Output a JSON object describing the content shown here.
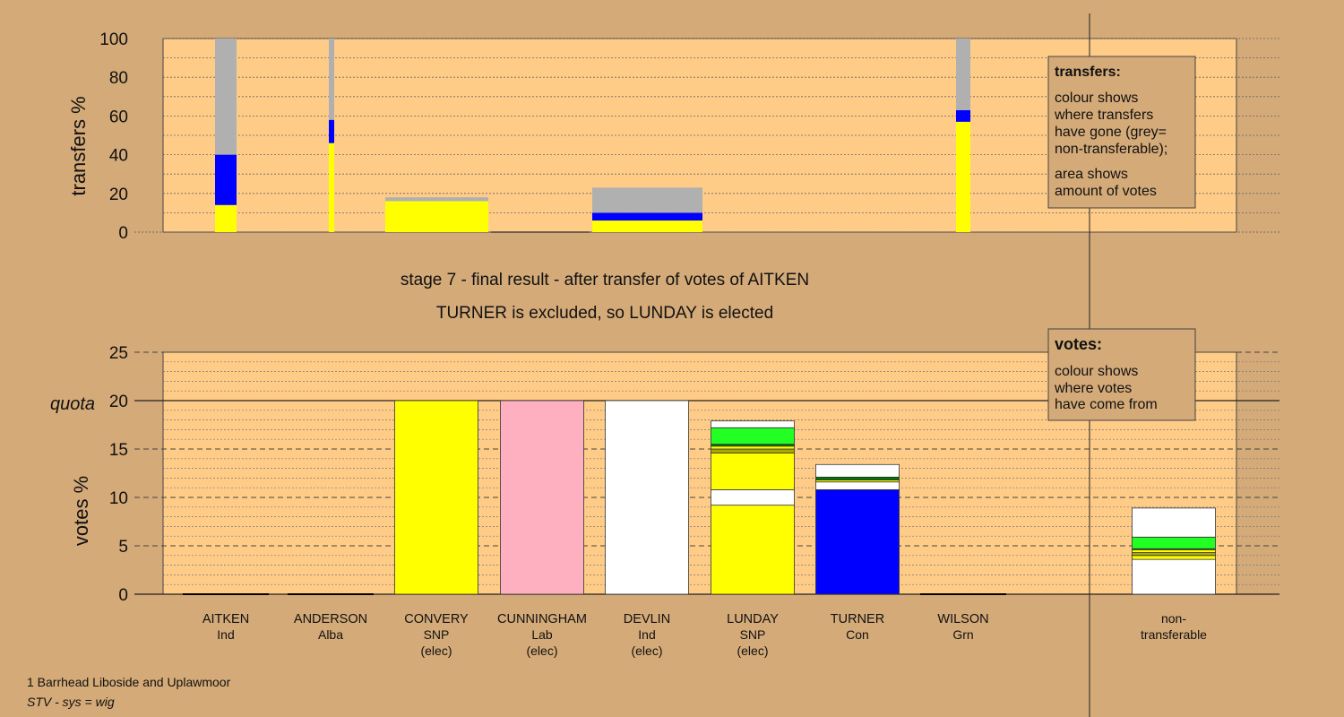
{
  "chart_data": [
    {
      "type": "bar",
      "name": "transfers",
      "ylabel": "transfers %",
      "ylim": [
        0,
        100
      ],
      "yticks": [
        0,
        20,
        40,
        60,
        80,
        100
      ],
      "colors": {
        "yellow": "#ffff00",
        "blue": "#0000ff",
        "grey": "#b0b0b0",
        "plot_bg": "#ffcc88"
      },
      "bars": [
        {
          "candidate": "AITKEN",
          "segments": [
            {
              "color": "yellow",
              "value": 14
            },
            {
              "color": "blue",
              "value": 26
            },
            {
              "color": "grey",
              "value": 60
            }
          ]
        },
        {
          "candidate": "ANDERSON",
          "segments": [
            {
              "color": "yellow",
              "value": 46
            },
            {
              "color": "blue",
              "value": 12
            },
            {
              "color": "grey",
              "value": 42
            }
          ]
        },
        {
          "candidate": "CONVERY",
          "segments": [
            {
              "color": "yellow",
              "value": 16
            },
            {
              "color": "grey",
              "value": 2
            }
          ]
        },
        {
          "candidate": "CUNNINGHAM",
          "segments": []
        },
        {
          "candidate": "DEVLIN",
          "segments": [
            {
              "color": "yellow",
              "value": 6
            },
            {
              "color": "blue",
              "value": 4
            },
            {
              "color": "grey",
              "value": 13
            }
          ]
        },
        {
          "candidate": "WILSON",
          "segments": [
            {
              "color": "yellow",
              "value": 57
            },
            {
              "color": "blue",
              "value": 6
            },
            {
              "color": "grey",
              "value": 37
            }
          ]
        }
      ],
      "legend": {
        "title": "transfers:",
        "lines1": [
          "colour shows",
          "where transfers",
          "have gone (grey=",
          "non-transferable);"
        ],
        "lines2": [
          "area shows",
          "amount of votes"
        ]
      }
    },
    {
      "type": "bar",
      "name": "votes",
      "ylabel": "votes %",
      "ylim": [
        0,
        25
      ],
      "yticks": [
        0,
        5,
        10,
        15,
        20,
        25
      ],
      "quota": 20,
      "quota_label": "quota",
      "colors": {
        "yellow": "#ffff00",
        "blue": "#0000ff",
        "pink": "#ffb0c0",
        "white": "#ffffff",
        "green": "#22ff22",
        "darkgreen": "#007700",
        "olive": "#aaaa00"
      },
      "bars": [
        {
          "candidate": "AITKEN",
          "party": "Ind",
          "segments": []
        },
        {
          "candidate": "ANDERSON",
          "party": "Alba",
          "segments": []
        },
        {
          "candidate": "CONVERY",
          "party": "SNP",
          "status": "(elec)",
          "segments": [
            {
              "color": "yellow",
              "value": 20
            }
          ]
        },
        {
          "candidate": "CUNNINGHAM",
          "party": "Lab",
          "status": "(elec)",
          "segments": [
            {
              "color": "pink",
              "value": 20
            }
          ]
        },
        {
          "candidate": "DEVLIN",
          "party": "Ind",
          "status": "(elec)",
          "segments": [
            {
              "color": "white",
              "value": 20
            }
          ]
        },
        {
          "candidate": "LUNDAY",
          "party": "SNP",
          "status": "(elec)",
          "segments": [
            {
              "color": "yellow",
              "value": 9.2
            },
            {
              "color": "white",
              "value": 1.6
            },
            {
              "color": "yellow",
              "value": 3.8
            },
            {
              "color": "olive",
              "value": 0.4
            },
            {
              "color": "yellow",
              "value": 0.3
            },
            {
              "color": "darkgreen",
              "value": 0.2
            },
            {
              "color": "green",
              "value": 1.7
            },
            {
              "color": "white",
              "value": 0.7
            }
          ]
        },
        {
          "candidate": "TURNER",
          "party": "Con",
          "segments": [
            {
              "color": "blue",
              "value": 10.8
            },
            {
              "color": "white",
              "value": 0.8
            },
            {
              "color": "yellow",
              "value": 0.2
            },
            {
              "color": "darkgreen",
              "value": 0.3
            },
            {
              "color": "white",
              "value": 1.3
            }
          ]
        },
        {
          "candidate": "WILSON",
          "party": "Grn",
          "segments": []
        },
        {
          "candidate": "non-transferable",
          "label_lines": [
            "non-",
            "transferable"
          ],
          "segments": [
            {
              "color": "white",
              "value": 3.6
            },
            {
              "color": "yellow",
              "value": 0.4
            },
            {
              "color": "olive",
              "value": 0.3
            },
            {
              "color": "yellow",
              "value": 0.3
            },
            {
              "color": "darkgreen",
              "value": 0.1
            },
            {
              "color": "green",
              "value": 1.2
            },
            {
              "color": "white",
              "value": 3.0
            }
          ]
        }
      ],
      "legend": {
        "title": "votes:",
        "lines1": [
          "colour shows",
          "where votes",
          "have come from"
        ]
      }
    }
  ],
  "caption": {
    "line1": "stage 7 - final result - after transfer of votes of AITKEN",
    "line2": "TURNER is excluded, so LUNDAY is elected"
  },
  "footer": {
    "ward": "1 Barrhead Liboside and Uplawmoor",
    "system": "STV - sys = wig"
  }
}
